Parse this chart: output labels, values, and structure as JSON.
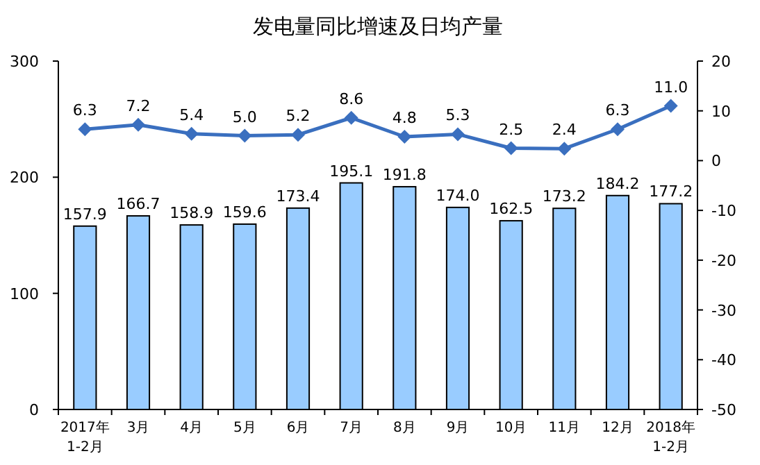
{
  "chart_data": {
    "type": "bar",
    "title": "发电量同比增速及日均产量",
    "categories": [
      "2017年\n1-2月",
      "3月",
      "4月",
      "5月",
      "6月",
      "7月",
      "8月",
      "9月",
      "10月",
      "11月",
      "12月",
      "2018年\n1-2月"
    ],
    "series": [
      {
        "color": "#99ccff",
        "values": [
          157.9,
          166.7,
          158.9,
          159.6,
          173.4,
          195.1,
          191.8,
          174.0,
          162.5,
          173.2,
          184.2,
          177.2
        ],
        "value_labels": [
          "157.9",
          "166.7",
          "158.9",
          "159.6",
          "173.4",
          "195.1",
          "191.8",
          "174.0",
          "162.5",
          "173.2",
          "184.2",
          "177.2"
        ]
      },
      {
        "type": "line",
        "axis": "y2",
        "color": "#3a6fbf",
        "marker": "diamond",
        "values": [
          6.3,
          7.2,
          5.4,
          5.0,
          5.2,
          8.6,
          4.8,
          5.3,
          2.5,
          2.4,
          6.3,
          11.0
        ],
        "value_labels": [
          "6.3",
          "7.2",
          "5.4",
          "5.0",
          "5.2",
          "8.6",
          "4.8",
          "5.3",
          "2.5",
          "2.4",
          "6.3",
          "11.0"
        ]
      }
    ],
    "ylim": [
      0,
      300
    ],
    "yticks": [
      0,
      100,
      200,
      300
    ],
    "y2lim": [
      -50,
      20
    ],
    "y2ticks": [
      -50,
      -40,
      -30,
      -20,
      -10,
      0,
      10,
      20
    ]
  }
}
